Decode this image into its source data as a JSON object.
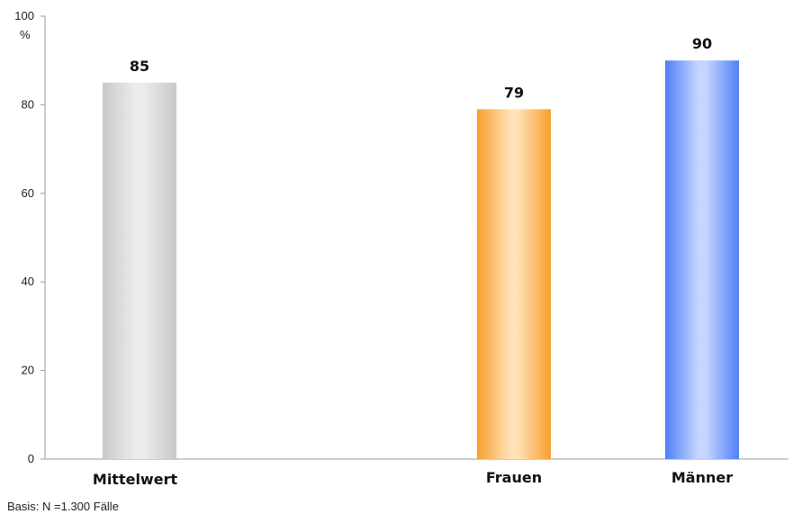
{
  "chart_data": {
    "type": "bar",
    "categories": [
      "Mittelwert",
      "Frauen",
      "Männer"
    ],
    "values": [
      85,
      79,
      90
    ],
    "ylabel": "%",
    "ylim": [
      0,
      100
    ],
    "yticks": [
      "0",
      "20",
      "40",
      "60",
      "80",
      "100"
    ],
    "grid": false,
    "legend": "none",
    "colors": {
      "Mittelwert": [
        "#c9c9c9",
        "#ececec"
      ],
      "Frauen": [
        "#f7a02c",
        "#ffe2b8"
      ],
      "Männer": [
        "#4f80f7",
        "#c6d5ff"
      ]
    }
  },
  "footnote": "Basis: N =1.300 Fälle"
}
